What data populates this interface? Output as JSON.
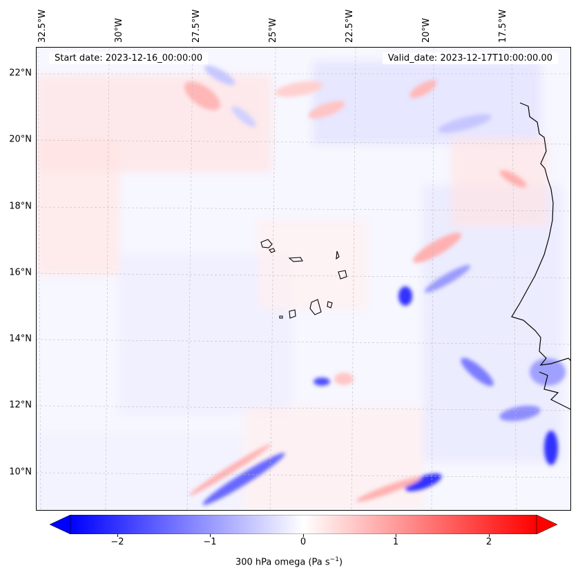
{
  "header": {
    "start_date": "Start date: 2023-12-16_00:00:00",
    "valid_date": "Valid_date: 2023-12-17T10:00:00.00"
  },
  "axes": {
    "lon_labels": [
      "32.5°W",
      "30°W",
      "27.5°W",
      "25°W",
      "22.5°W",
      "20°W",
      "17.5°W"
    ],
    "lat_labels": [
      "22°N",
      "20°N",
      "18°N",
      "16°N",
      "14°N",
      "12°N",
      "10°N"
    ],
    "lon_values": [
      -32.5,
      -30,
      -27.5,
      -25,
      -22.5,
      -20,
      -17.5
    ],
    "lat_values": [
      22,
      20,
      18,
      16,
      14,
      12,
      10
    ],
    "grid": true
  },
  "field": {
    "variable_label": "300 hPa omega (Pa s",
    "variable_label_sup": "−1",
    "variable_label_end": ")",
    "colormap": "bwr",
    "range": [
      -2.6,
      2.6
    ],
    "extend": "both"
  },
  "colorbar": {
    "ticks": [
      "−2",
      "−1",
      "0",
      "1",
      "2"
    ],
    "tick_values": [
      -2,
      -1,
      0,
      1,
      2
    ],
    "colors": {
      "min": "#0000ff",
      "mid": "#ffffff",
      "max": "#ff0000"
    }
  }
}
